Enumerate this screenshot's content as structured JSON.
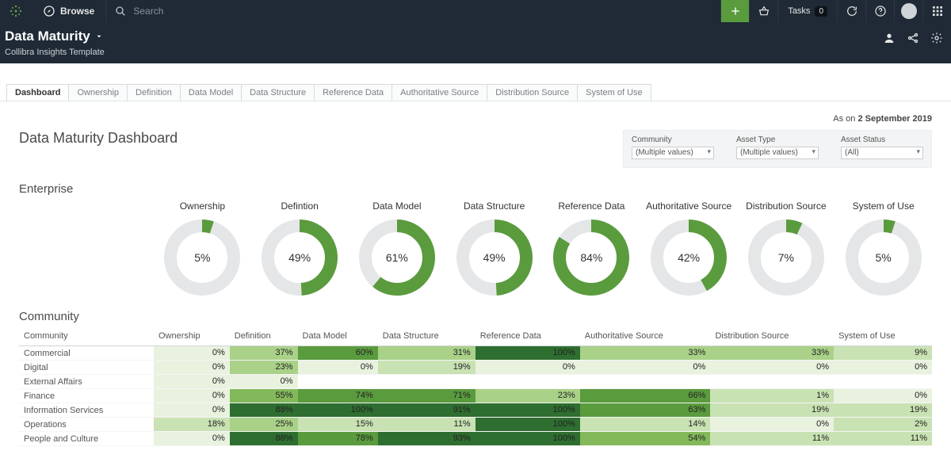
{
  "nav": {
    "browse": "Browse",
    "search_placeholder": "Search",
    "tasks_label": "Tasks",
    "tasks_count": "0"
  },
  "title": {
    "main": "Data Maturity",
    "sub": "Collibra Insights Template"
  },
  "tabs": [
    {
      "label": "Dashboard",
      "active": true
    },
    {
      "label": "Ownership",
      "active": false
    },
    {
      "label": "Definition",
      "active": false
    },
    {
      "label": "Data Model",
      "active": false
    },
    {
      "label": "Data Structure",
      "active": false
    },
    {
      "label": "Reference Data",
      "active": false
    },
    {
      "label": "Authoritative Source",
      "active": false
    },
    {
      "label": "Distribution Source",
      "active": false
    },
    {
      "label": "System of Use",
      "active": false
    }
  ],
  "asof_prefix": "As on ",
  "asof_date": "2 September 2019",
  "dash_title": "Data Maturity Dashboard",
  "filters": [
    {
      "label": "Community",
      "value": "(Multiple values)"
    },
    {
      "label": "Asset Type",
      "value": "(Multiple values)"
    },
    {
      "label": "Asset Status",
      "value": "(All)"
    }
  ],
  "enterprise_title": "Enterprise",
  "community_title": "Community",
  "donut_colors": {
    "fg": "#5a9b3e",
    "bg": "#e4e6e8"
  },
  "donuts": [
    {
      "label": "Ownership",
      "pct": 5
    },
    {
      "label": "Defintion",
      "pct": 49
    },
    {
      "label": "Data Model",
      "pct": 61
    },
    {
      "label": "Data Structure",
      "pct": 49
    },
    {
      "label": "Reference Data",
      "pct": 84
    },
    {
      "label": "Authoritative Source",
      "pct": 42
    },
    {
      "label": "Distribution Source",
      "pct": 7
    },
    {
      "label": "System of Use",
      "pct": 5
    }
  ],
  "comm_headers": [
    "Community",
    "Ownership",
    "Definition",
    "Data Model",
    "Data Structure",
    "Reference Data",
    "Authoritative Source",
    "Distribution Source",
    "System of Use"
  ],
  "heat_colors": {
    "c0": "#e9f2df",
    "c1": "#c9e2b3",
    "c2": "#a9d188",
    "c3": "#84b95b",
    "c4": "#5a9b3e",
    "c5": "#2e6e30"
  },
  "comm_rows": [
    {
      "name": "Commercial",
      "vals": [
        0,
        37,
        60,
        31,
        100,
        33,
        33,
        9
      ]
    },
    {
      "name": "Digital",
      "vals": [
        0,
        23,
        0,
        19,
        0,
        0,
        0,
        0
      ]
    },
    {
      "name": "External Affairs",
      "vals": [
        0,
        0,
        null,
        null,
        null,
        null,
        null,
        null
      ]
    },
    {
      "name": "Finance",
      "vals": [
        0,
        55,
        74,
        71,
        23,
        66,
        1,
        0
      ]
    },
    {
      "name": "Information Services",
      "vals": [
        0,
        88,
        100,
        91,
        100,
        63,
        19,
        19
      ]
    },
    {
      "name": "Operations",
      "vals": [
        18,
        25,
        15,
        11,
        100,
        14,
        0,
        2
      ]
    },
    {
      "name": "People and Culture",
      "vals": [
        0,
        88,
        78,
        93,
        100,
        54,
        11,
        11
      ]
    }
  ]
}
